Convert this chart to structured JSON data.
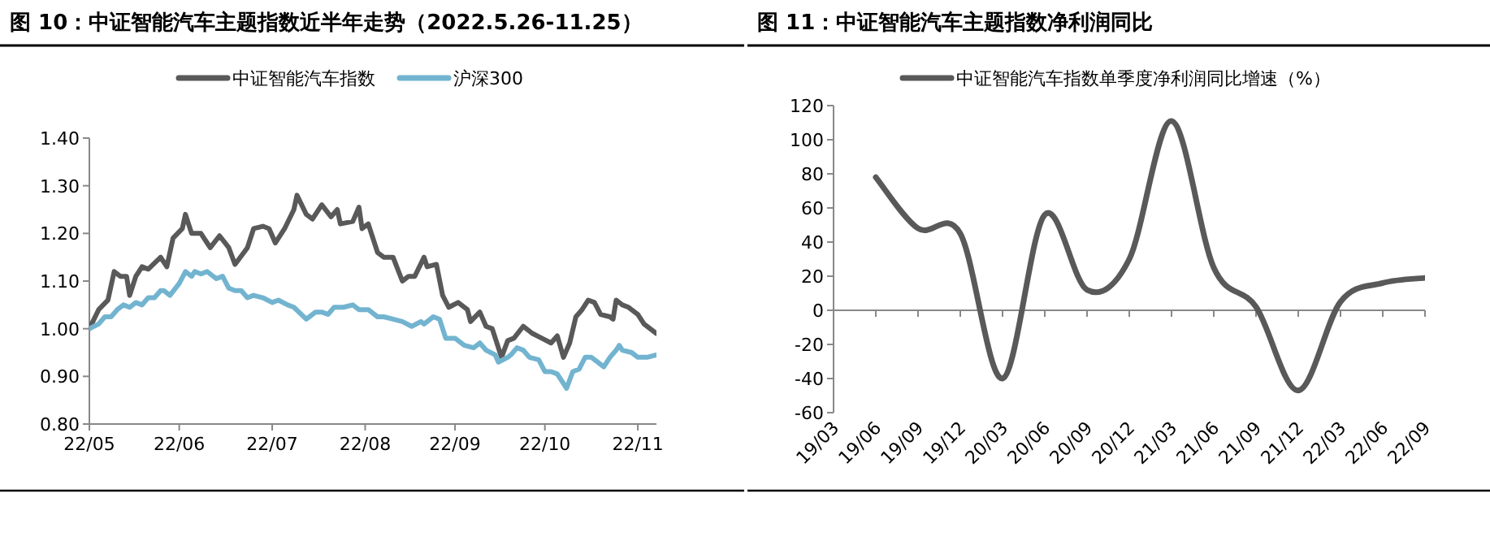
{
  "chart_data": [
    {
      "type": "line",
      "title": "图 10：中证智能汽车主题指数近半年走势（2022.5.26-11.25）",
      "legend": "top",
      "tick_labels": "xy",
      "xlim": [
        "2022-05-26",
        "2022-11-25"
      ],
      "xticks": [
        {
          "value": "2022-05-26",
          "label": "22/05"
        },
        {
          "value": "2022-06-24",
          "label": "22/06"
        },
        {
          "value": "2022-07-24",
          "label": "22/07"
        },
        {
          "value": "2022-08-23",
          "label": "22/08"
        },
        {
          "value": "2022-09-21",
          "label": "22/09"
        },
        {
          "value": "2022-10-20",
          "label": "22/10"
        },
        {
          "value": "2022-11-19",
          "label": "22/11"
        }
      ],
      "ylim": [
        0.8,
        1.4
      ],
      "yticks": [
        {
          "value": 0.8,
          "label": "0.80"
        },
        {
          "value": 0.9,
          "label": "0.90"
        },
        {
          "value": 1.0,
          "label": "1.00"
        },
        {
          "value": 1.1,
          "label": "1.10"
        },
        {
          "value": 1.2,
          "label": "1.20"
        },
        {
          "value": 1.3,
          "label": "1.30"
        },
        {
          "value": 1.4,
          "label": "1.40"
        }
      ],
      "series": [
        {
          "name": "中证智能汽车指数",
          "color": "#595959",
          "x": [
            "2022-05-26",
            "2022-05-29",
            "2022-06-01",
            "2022-06-03",
            "2022-06-05",
            "2022-06-07",
            "2022-06-08",
            "2022-06-10",
            "2022-06-12",
            "2022-06-14",
            "2022-06-18",
            "2022-06-20",
            "2022-06-22",
            "2022-06-25",
            "2022-06-26",
            "2022-06-28",
            "2022-07-01",
            "2022-07-04",
            "2022-07-07",
            "2022-07-10",
            "2022-07-12",
            "2022-07-16",
            "2022-07-18",
            "2022-07-21",
            "2022-07-23",
            "2022-07-25",
            "2022-07-28",
            "2022-07-31",
            "2022-08-01",
            "2022-08-04",
            "2022-08-06",
            "2022-08-09",
            "2022-08-12",
            "2022-08-14",
            "2022-08-15",
            "2022-08-19",
            "2022-08-21",
            "2022-08-22",
            "2022-08-24",
            "2022-08-27",
            "2022-08-29",
            "2022-09-01",
            "2022-09-04",
            "2022-09-06",
            "2022-09-08",
            "2022-09-11",
            "2022-09-12",
            "2022-09-15",
            "2022-09-17",
            "2022-09-19",
            "2022-09-22",
            "2022-09-25",
            "2022-09-26",
            "2022-09-29",
            "2022-10-01",
            "2022-10-03",
            "2022-10-06",
            "2022-10-08",
            "2022-10-10",
            "2022-10-13",
            "2022-10-16",
            "2022-10-19",
            "2022-10-22",
            "2022-10-24",
            "2022-10-26",
            "2022-10-28",
            "2022-10-30",
            "2022-11-01",
            "2022-11-03",
            "2022-11-05",
            "2022-11-07",
            "2022-11-10",
            "2022-11-11",
            "2022-11-12",
            "2022-11-14",
            "2022-11-16",
            "2022-11-19",
            "2022-11-21",
            "2022-11-25"
          ],
          "values": [
            1.0,
            1.04,
            1.06,
            1.12,
            1.11,
            1.11,
            1.07,
            1.11,
            1.13,
            1.125,
            1.15,
            1.13,
            1.19,
            1.21,
            1.24,
            1.2,
            1.2,
            1.17,
            1.195,
            1.17,
            1.135,
            1.17,
            1.21,
            1.215,
            1.21,
            1.18,
            1.21,
            1.25,
            1.28,
            1.24,
            1.23,
            1.26,
            1.235,
            1.25,
            1.22,
            1.225,
            1.255,
            1.21,
            1.22,
            1.16,
            1.15,
            1.15,
            1.1,
            1.11,
            1.11,
            1.15,
            1.13,
            1.135,
            1.07,
            1.045,
            1.055,
            1.04,
            1.015,
            1.035,
            1.005,
            1.0,
            0.94,
            0.975,
            0.98,
            1.005,
            0.99,
            0.98,
            0.97,
            0.985,
            0.94,
            0.97,
            1.025,
            1.04,
            1.06,
            1.055,
            1.03,
            1.025,
            1.02,
            1.06,
            1.05,
            1.045,
            1.03,
            1.01,
            0.99
          ]
        },
        {
          "name": "沪深300",
          "color": "#72b4d0",
          "x": [
            "2022-05-26",
            "2022-05-29",
            "2022-05-31",
            "2022-06-02",
            "2022-06-04",
            "2022-06-06",
            "2022-06-08",
            "2022-06-10",
            "2022-06-12",
            "2022-06-14",
            "2022-06-16",
            "2022-06-18",
            "2022-06-19",
            "2022-06-21",
            "2022-06-24",
            "2022-06-26",
            "2022-06-28",
            "2022-06-29",
            "2022-07-01",
            "2022-07-03",
            "2022-07-06",
            "2022-07-08",
            "2022-07-10",
            "2022-07-12",
            "2022-07-14",
            "2022-07-16",
            "2022-07-18",
            "2022-07-21",
            "2022-07-24",
            "2022-07-26",
            "2022-07-29",
            "2022-07-31",
            "2022-08-04",
            "2022-08-07",
            "2022-08-09",
            "2022-08-11",
            "2022-08-13",
            "2022-08-16",
            "2022-08-19",
            "2022-08-21",
            "2022-08-24",
            "2022-08-27",
            "2022-08-29",
            "2022-09-01",
            "2022-09-04",
            "2022-09-07",
            "2022-09-10",
            "2022-09-11",
            "2022-09-14",
            "2022-09-16",
            "2022-09-18",
            "2022-09-21",
            "2022-09-24",
            "2022-09-27",
            "2022-09-29",
            "2022-10-01",
            "2022-10-04",
            "2022-10-05",
            "2022-10-08",
            "2022-10-09",
            "2022-10-11",
            "2022-10-13",
            "2022-10-15",
            "2022-10-18",
            "2022-10-20",
            "2022-10-22",
            "2022-10-24",
            "2022-10-27",
            "2022-10-29",
            "2022-10-31",
            "2022-11-02",
            "2022-11-04",
            "2022-11-06",
            "2022-11-08",
            "2022-11-10",
            "2022-11-12",
            "2022-11-13",
            "2022-11-14",
            "2022-11-17",
            "2022-11-19",
            "2022-11-22",
            "2022-11-25"
          ],
          "values": [
            1.0,
            1.01,
            1.025,
            1.025,
            1.04,
            1.05,
            1.045,
            1.055,
            1.05,
            1.065,
            1.065,
            1.08,
            1.08,
            1.07,
            1.095,
            1.12,
            1.11,
            1.12,
            1.115,
            1.12,
            1.105,
            1.11,
            1.085,
            1.08,
            1.08,
            1.065,
            1.07,
            1.065,
            1.055,
            1.06,
            1.05,
            1.045,
            1.02,
            1.035,
            1.035,
            1.03,
            1.045,
            1.045,
            1.05,
            1.04,
            1.04,
            1.025,
            1.025,
            1.02,
            1.015,
            1.005,
            1.015,
            1.01,
            1.025,
            1.02,
            0.98,
            0.98,
            0.965,
            0.96,
            0.97,
            0.955,
            0.945,
            0.93,
            0.94,
            0.945,
            0.96,
            0.955,
            0.94,
            0.935,
            0.91,
            0.91,
            0.905,
            0.875,
            0.91,
            0.915,
            0.94,
            0.94,
            0.93,
            0.92,
            0.94,
            0.955,
            0.965,
            0.955,
            0.95,
            0.94,
            0.94,
            0.945
          ]
        }
      ]
    },
    {
      "type": "line",
      "title": "图 11：中证智能汽车主题指数净利润同比",
      "legend": "top",
      "tick_labels": "xy",
      "categories": [
        "19/03",
        "19/06",
        "19/09",
        "19/12",
        "20/03",
        "20/06",
        "20/09",
        "20/12",
        "21/03",
        "21/06",
        "21/09",
        "21/12",
        "22/03",
        "22/06",
        "22/09"
      ],
      "ylim": [
        -60,
        120
      ],
      "yticks": [
        -60,
        -40,
        -20,
        0,
        20,
        40,
        60,
        80,
        100,
        120
      ],
      "series": [
        {
          "name": "中证智能汽车指数单季度净利润同比增速（%）",
          "color": "#595959",
          "values": [
            null,
            78,
            48,
            45,
            -40,
            56,
            12,
            30,
            111,
            25,
            2,
            -47,
            5,
            16,
            19
          ]
        }
      ]
    }
  ]
}
